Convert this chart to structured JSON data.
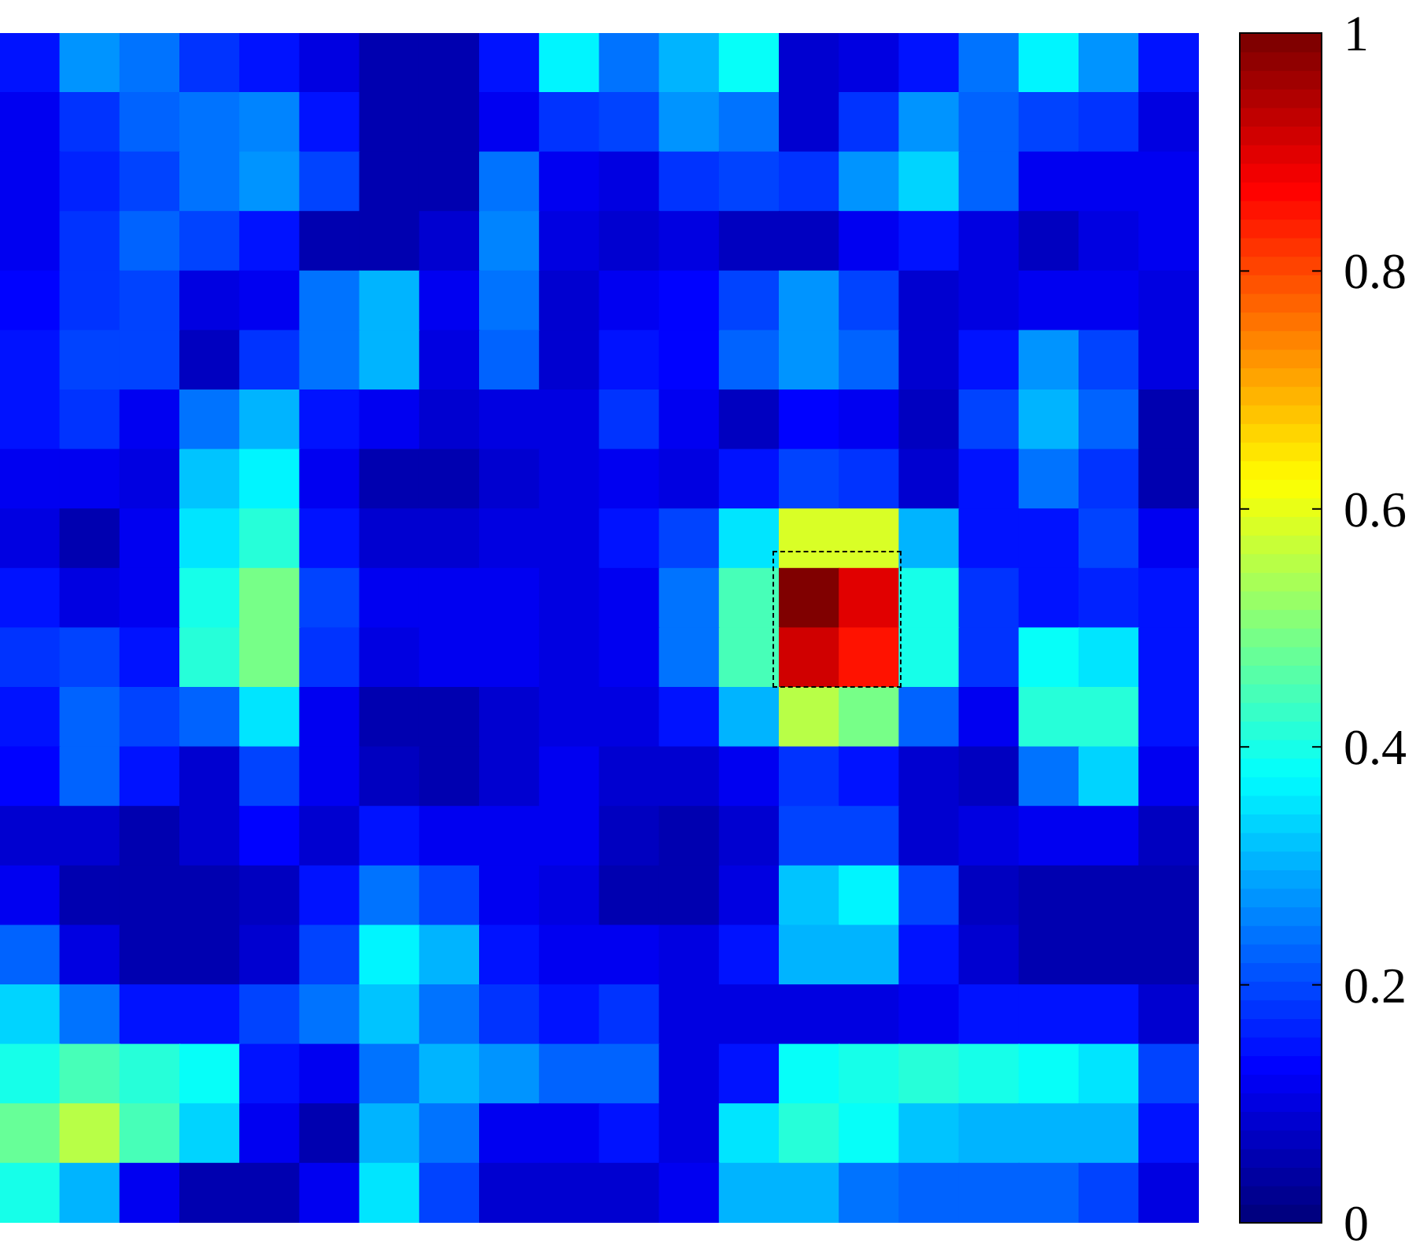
{
  "chart_data": {
    "type": "heatmap",
    "categories": [
      null,
      null,
      null,
      null,
      null,
      null,
      null,
      null,
      null,
      null,
      null,
      null,
      null,
      null,
      null,
      null,
      null,
      null,
      null,
      null
    ],
    "y_categories": [
      null,
      null,
      null,
      null,
      null,
      null,
      null,
      null,
      null,
      null,
      null,
      null,
      null,
      null,
      null,
      null,
      null,
      null,
      null,
      null
    ],
    "cells": [
      [
        0.15,
        0.28,
        0.25,
        0.18,
        0.15,
        0.1,
        0.05,
        0.06,
        0.15,
        0.36,
        0.25,
        0.3,
        0.38,
        0.08,
        0.1,
        0.15,
        0.25,
        0.37,
        0.28,
        0.15
      ],
      [
        0.12,
        0.18,
        0.22,
        0.25,
        0.26,
        0.15,
        0.06,
        0.06,
        0.12,
        0.18,
        0.2,
        0.28,
        0.25,
        0.08,
        0.18,
        0.28,
        0.22,
        0.2,
        0.18,
        0.1
      ],
      [
        0.12,
        0.16,
        0.2,
        0.25,
        0.27,
        0.2,
        0.06,
        0.06,
        0.24,
        0.12,
        0.1,
        0.18,
        0.2,
        0.18,
        0.27,
        0.33,
        0.22,
        0.12,
        0.12,
        0.12
      ],
      [
        0.12,
        0.18,
        0.22,
        0.2,
        0.15,
        0.06,
        0.05,
        0.08,
        0.26,
        0.1,
        0.08,
        0.1,
        0.07,
        0.07,
        0.12,
        0.15,
        0.1,
        0.07,
        0.1,
        0.12
      ],
      [
        0.14,
        0.18,
        0.2,
        0.1,
        0.12,
        0.25,
        0.3,
        0.12,
        0.25,
        0.08,
        0.12,
        0.14,
        0.2,
        0.28,
        0.2,
        0.08,
        0.1,
        0.12,
        0.12,
        0.1
      ],
      [
        0.15,
        0.2,
        0.2,
        0.07,
        0.18,
        0.25,
        0.3,
        0.1,
        0.22,
        0.08,
        0.15,
        0.14,
        0.22,
        0.28,
        0.22,
        0.08,
        0.15,
        0.27,
        0.2,
        0.1
      ],
      [
        0.15,
        0.18,
        0.12,
        0.25,
        0.3,
        0.15,
        0.12,
        0.08,
        0.1,
        0.1,
        0.18,
        0.12,
        0.07,
        0.14,
        0.12,
        0.07,
        0.2,
        0.3,
        0.22,
        0.06
      ],
      [
        0.12,
        0.12,
        0.1,
        0.32,
        0.37,
        0.12,
        0.06,
        0.06,
        0.08,
        0.1,
        0.12,
        0.1,
        0.15,
        0.2,
        0.18,
        0.08,
        0.15,
        0.25,
        0.18,
        0.06
      ],
      [
        0.1,
        0.05,
        0.12,
        0.35,
        0.42,
        0.15,
        0.08,
        0.08,
        0.1,
        0.1,
        0.15,
        0.2,
        0.35,
        0.58,
        0.58,
        0.3,
        0.15,
        0.15,
        0.2,
        0.12
      ],
      [
        0.15,
        0.1,
        0.12,
        0.4,
        0.5,
        0.2,
        0.12,
        0.12,
        0.12,
        0.1,
        0.12,
        0.25,
        0.45,
        1,
        0.9,
        0.4,
        0.18,
        0.15,
        0.17,
        0.15
      ],
      [
        0.18,
        0.2,
        0.15,
        0.42,
        0.5,
        0.18,
        0.1,
        0.12,
        0.12,
        0.1,
        0.12,
        0.25,
        0.45,
        0.92,
        0.85,
        0.4,
        0.18,
        0.38,
        0.35,
        0.15
      ],
      [
        0.15,
        0.22,
        0.2,
        0.22,
        0.35,
        0.12,
        0.06,
        0.06,
        0.08,
        0.1,
        0.1,
        0.15,
        0.3,
        0.55,
        0.5,
        0.22,
        0.12,
        0.42,
        0.42,
        0.15
      ],
      [
        0.14,
        0.22,
        0.15,
        0.08,
        0.2,
        0.12,
        0.07,
        0.06,
        0.08,
        0.12,
        0.08,
        0.08,
        0.12,
        0.18,
        0.15,
        0.08,
        0.07,
        0.25,
        0.33,
        0.12
      ],
      [
        0.08,
        0.08,
        0.05,
        0.08,
        0.14,
        0.08,
        0.15,
        0.12,
        0.12,
        0.12,
        0.07,
        0.06,
        0.08,
        0.2,
        0.2,
        0.08,
        0.1,
        0.12,
        0.12,
        0.07
      ],
      [
        0.12,
        0.06,
        0.05,
        0.05,
        0.07,
        0.15,
        0.25,
        0.2,
        0.12,
        0.1,
        0.06,
        0.06,
        0.1,
        0.32,
        0.36,
        0.2,
        0.07,
        0.06,
        0.05,
        0.06
      ],
      [
        0.22,
        0.1,
        0.05,
        0.05,
        0.08,
        0.2,
        0.37,
        0.3,
        0.15,
        0.12,
        0.12,
        0.1,
        0.15,
        0.3,
        0.3,
        0.15,
        0.08,
        0.06,
        0.06,
        0.06
      ],
      [
        0.33,
        0.25,
        0.15,
        0.15,
        0.2,
        0.25,
        0.32,
        0.25,
        0.18,
        0.15,
        0.18,
        0.1,
        0.1,
        0.1,
        0.1,
        0.12,
        0.15,
        0.15,
        0.15,
        0.08
      ],
      [
        0.4,
        0.45,
        0.42,
        0.38,
        0.15,
        0.12,
        0.25,
        0.3,
        0.28,
        0.22,
        0.22,
        0.1,
        0.15,
        0.38,
        0.4,
        0.42,
        0.4,
        0.38,
        0.35,
        0.2
      ],
      [
        0.48,
        0.55,
        0.45,
        0.33,
        0.12,
        0.06,
        0.3,
        0.25,
        0.12,
        0.12,
        0.15,
        0.1,
        0.35,
        0.42,
        0.38,
        0.32,
        0.3,
        0.3,
        0.3,
        0.15
      ],
      [
        0.4,
        0.3,
        0.12,
        0.06,
        0.06,
        0.12,
        0.35,
        0.2,
        0.08,
        0.08,
        0.08,
        0.12,
        0.3,
        0.3,
        0.25,
        0.22,
        0.22,
        0.22,
        0.2,
        0.1
      ]
    ],
    "clim": [
      0,
      1
    ],
    "cticks": [
      0,
      0.2,
      0.4,
      0.6,
      0.8,
      1
    ],
    "tick_labels": false
  }
}
